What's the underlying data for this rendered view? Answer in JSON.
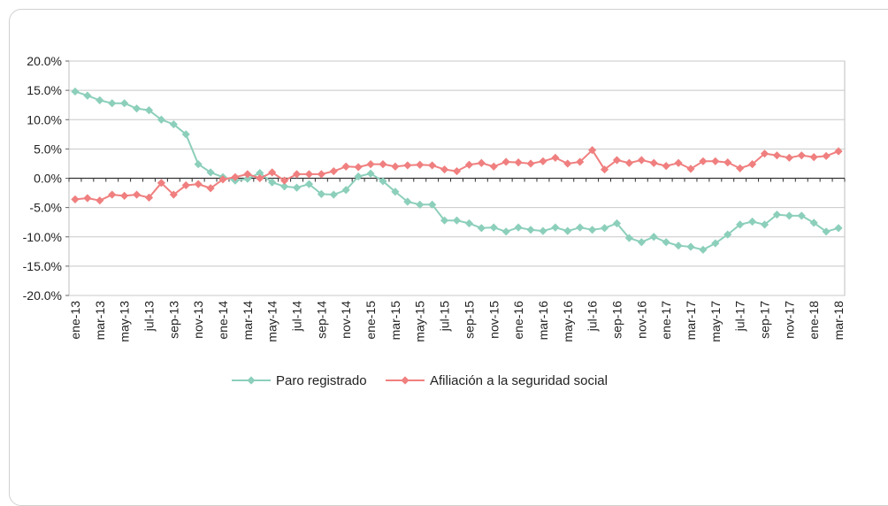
{
  "chart_data": {
    "type": "line",
    "title": "",
    "xlabel": "",
    "ylabel": "",
    "ylim": [
      -0.2,
      0.2
    ],
    "yticks": [
      "20.0%",
      "15.0%",
      "10.0%",
      "5.0%",
      "0.0%",
      "-5.0%",
      "-10.0%",
      "-15.0%",
      "-20.0%"
    ],
    "ytick_values": [
      0.2,
      0.15,
      0.1,
      0.05,
      0.0,
      -0.05,
      -0.1,
      -0.15,
      -0.2
    ],
    "x": [
      "ene-13",
      "feb-13",
      "mar-13",
      "abr-13",
      "may-13",
      "jun-13",
      "jul-13",
      "ago-13",
      "sep-13",
      "oct-13",
      "nov-13",
      "dic-13",
      "ene-14",
      "feb-14",
      "mar-14",
      "abr-14",
      "may-14",
      "jun-14",
      "jul-14",
      "ago-14",
      "sep-14",
      "oct-14",
      "nov-14",
      "dic-14",
      "ene-15",
      "feb-15",
      "mar-15",
      "abr-15",
      "may-15",
      "jun-15",
      "jul-15",
      "ago-15",
      "sep-15",
      "oct-15",
      "nov-15",
      "dic-15",
      "ene-16",
      "feb-16",
      "mar-16",
      "abr-16",
      "may-16",
      "jun-16",
      "jul-16",
      "ago-16",
      "sep-16",
      "oct-16",
      "nov-16",
      "dic-16",
      "ene-17",
      "feb-17",
      "mar-17",
      "abr-17",
      "may-17",
      "jun-17",
      "jul-17",
      "ago-17",
      "sep-17",
      "oct-17",
      "nov-17",
      "dic-17",
      "ene-18",
      "feb-18",
      "mar-18"
    ],
    "x_tick_labels": [
      "ene-13",
      "mar-13",
      "may-13",
      "jul-13",
      "sep-13",
      "nov-13",
      "ene-14",
      "mar-14",
      "may-14",
      "jul-14",
      "sep-14",
      "nov-14",
      "ene-15",
      "mar-15",
      "may-15",
      "jul-15",
      "sep-15",
      "nov-15",
      "ene-16",
      "mar-16",
      "may-16",
      "jul-16",
      "sep-16",
      "nov-16",
      "ene-17",
      "mar-17",
      "may-17",
      "jul-17",
      "sep-17",
      "nov-17",
      "ene-18",
      "mar-18"
    ],
    "series": [
      {
        "name": "Paro registrado",
        "color": "#8ccfbb",
        "values": [
          0.148,
          0.141,
          0.133,
          0.128,
          0.128,
          0.119,
          0.116,
          0.1,
          0.092,
          0.075,
          0.024,
          0.01,
          0.002,
          -0.004,
          -0.001,
          0.009,
          -0.007,
          -0.014,
          -0.016,
          -0.01,
          -0.027,
          -0.028,
          -0.02,
          0.003,
          0.008,
          -0.005,
          -0.023,
          -0.04,
          -0.045,
          -0.045,
          -0.072,
          -0.072,
          -0.077,
          -0.085,
          -0.084,
          -0.091,
          -0.084,
          -0.088,
          -0.09,
          -0.084,
          -0.09,
          -0.084,
          -0.088,
          -0.085,
          -0.077,
          -0.102,
          -0.109,
          -0.1,
          -0.109,
          -0.115,
          -0.117,
          -0.122,
          -0.111,
          -0.096,
          -0.079,
          -0.074,
          -0.079,
          -0.062,
          -0.064,
          -0.064,
          -0.076,
          -0.091,
          -0.085
        ]
      },
      {
        "name": "Afiliación a la seguridad social",
        "color": "#f07f7f",
        "values": [
          -0.036,
          -0.034,
          -0.038,
          -0.028,
          -0.03,
          -0.028,
          -0.033,
          -0.008,
          -0.028,
          -0.012,
          -0.01,
          -0.017,
          -0.002,
          0.002,
          0.007,
          0.0,
          0.01,
          -0.004,
          0.007,
          0.007,
          0.007,
          0.012,
          0.02,
          0.019,
          0.024,
          0.024,
          0.02,
          0.022,
          0.023,
          0.022,
          0.015,
          0.012,
          0.023,
          0.026,
          0.02,
          0.028,
          0.027,
          0.025,
          0.029,
          0.035,
          0.025,
          0.028,
          0.048,
          0.015,
          0.031,
          0.026,
          0.031,
          0.026,
          0.021,
          0.026,
          0.016,
          0.029,
          0.029,
          0.027,
          0.017,
          0.024,
          0.042,
          0.039,
          0.035,
          0.039,
          0.036,
          0.038,
          0.046
        ]
      }
    ],
    "legend_position": "bottom",
    "grid": "horizontal"
  }
}
